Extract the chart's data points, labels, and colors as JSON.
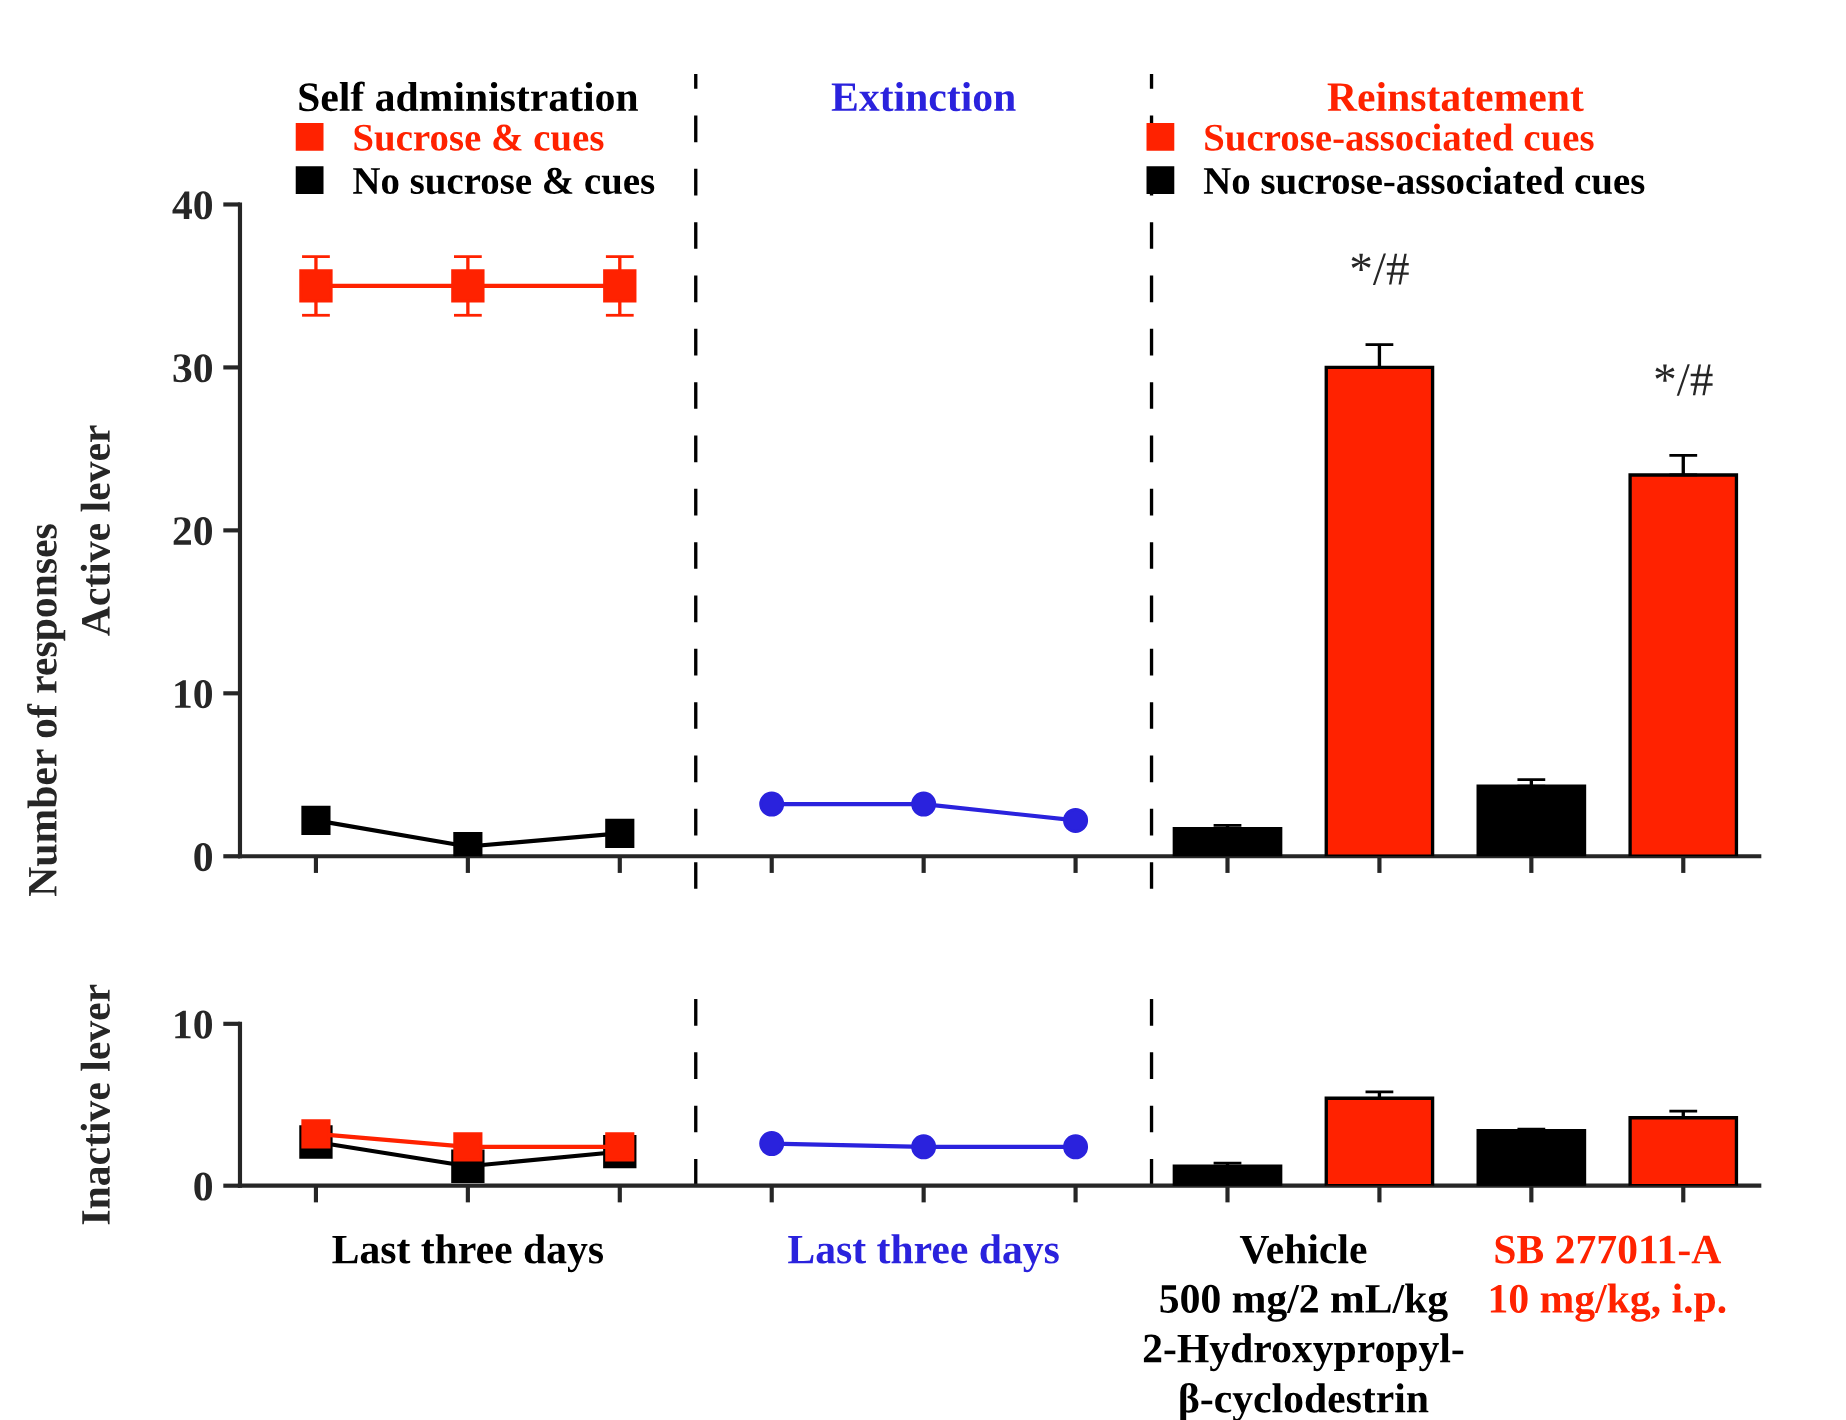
{
  "chart_data": [
    {
      "type": "line",
      "ylabel": "Active lever",
      "categories": [
        null,
        null,
        null,
        null,
        null,
        null,
        null,
        null,
        null,
        null
      ],
      "ylim": [
        0,
        40
      ],
      "yticks": [
        0,
        10,
        20,
        30,
        40
      ],
      "grid": false,
      "legend": "top",
      "annotations": [
        "Self administration",
        "Extinction",
        "Reinstatement",
        "Number of responses"
      ],
      "series": [
        {
          "name": "Sucrose & cues",
          "marker": "square",
          "line_style": "solid",
          "color": "#ff2200",
          "values": [
            35,
            35,
            35,
            null,
            null,
            null,
            null,
            null,
            null,
            null
          ],
          "errors": [
            1.8,
            1.8,
            1.8,
            null,
            null,
            null,
            null,
            null,
            null,
            null
          ]
        },
        {
          "name": "No sucrose & cues",
          "marker": "square",
          "line_style": "solid",
          "color": "#000000",
          "values": [
            2.2,
            0.6,
            1.4,
            null,
            null,
            null,
            null,
            null,
            null,
            null
          ]
        },
        {
          "marker": "circle",
          "line_style": "solid",
          "color": "#2a22dd",
          "values": [
            null,
            null,
            null,
            3.2,
            3.2,
            2.2,
            null,
            null,
            null,
            null
          ]
        },
        {
          "name": "Sucrose-associated cues",
          "type": "bar",
          "color": "#ff2200",
          "values": [
            null,
            null,
            null,
            null,
            null,
            null,
            null,
            30,
            null,
            23.4
          ],
          "errors": [
            null,
            null,
            null,
            null,
            null,
            null,
            null,
            1.4,
            null,
            1.2
          ],
          "value_labels": [
            null,
            null,
            null,
            null,
            null,
            null,
            null,
            "*/#",
            null,
            "*/#"
          ]
        },
        {
          "name": "No sucrose-associated cues",
          "type": "bar",
          "color": "#000000",
          "values": [
            null,
            null,
            null,
            null,
            null,
            null,
            1.7,
            null,
            4.3,
            null
          ],
          "errors": [
            null,
            null,
            null,
            null,
            null,
            null,
            0.2,
            null,
            0.4,
            null
          ]
        }
      ]
    },
    {
      "type": "line",
      "ylabel": "Inactive lever",
      "categories": [
        null,
        null,
        null,
        null,
        null,
        null,
        null,
        null,
        null,
        null
      ],
      "ylim": [
        0,
        10
      ],
      "yticks": [
        0,
        10
      ],
      "grid": false,
      "annotations": [
        "Last three days",
        "Last three days",
        "Vehicle\n500 mg/2 mL/kg\n2-Hydroxypropyl-\nβ-cyclodestrin",
        "SB 277011-A\n10 mg/kg, i.p."
      ],
      "series": [
        {
          "marker": "square",
          "line_style": "solid",
          "color": "#000000",
          "values": [
            2.7,
            1.2,
            2.1,
            null,
            null,
            null,
            null,
            null,
            null,
            null
          ]
        },
        {
          "marker": "square",
          "line_style": "solid",
          "color": "#ff2200",
          "values": [
            3.2,
            2.4,
            2.4,
            null,
            null,
            null,
            null,
            null,
            null,
            null
          ]
        },
        {
          "marker": "circle",
          "line_style": "solid",
          "color": "#2a22dd",
          "values": [
            null,
            null,
            null,
            2.6,
            2.4,
            2.4,
            null,
            null,
            null,
            null
          ]
        },
        {
          "type": "bar",
          "color": "#ff2200",
          "values": [
            null,
            null,
            null,
            null,
            null,
            null,
            null,
            5.4,
            null,
            4.2
          ],
          "errors": [
            null,
            null,
            null,
            null,
            null,
            null,
            null,
            0.4,
            null,
            0.4
          ]
        },
        {
          "type": "bar",
          "color": "#000000",
          "values": [
            null,
            null,
            null,
            null,
            null,
            null,
            1.2,
            null,
            3.4,
            null
          ],
          "errors": [
            null,
            null,
            null,
            null,
            null,
            null,
            0.2,
            null,
            0.1,
            null
          ]
        }
      ]
    }
  ]
}
